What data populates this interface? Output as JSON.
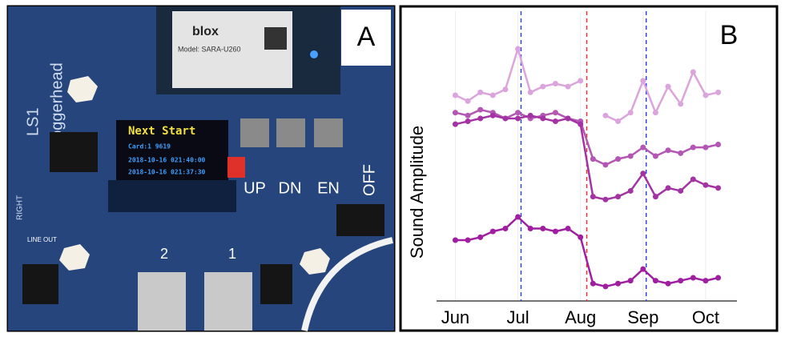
{
  "panel_a": {
    "label": "A",
    "brand": "blox",
    "model": "Model: SARA-U260",
    "board_name": "Loggerhead",
    "board_id": "LS1",
    "screen_title": "Next Start",
    "screen_card": "Card:1 9619",
    "screen_time1": "2018-10-16  021:40:00",
    "screen_time2": "2018-10-16  021:37:30",
    "button_up": "UP",
    "button_dn": "DN",
    "button_en": "EN",
    "switch_off": "OFF",
    "right_label": "RIGHT",
    "line_out": "LINE OUT",
    "port_2": "2",
    "port_1": "1"
  },
  "chart_data": {
    "type": "line",
    "label": "B",
    "y_label": "Sound Amplitude",
    "x": [
      0,
      0.2,
      0.4,
      0.6,
      0.8,
      1.0,
      1.2,
      1.4,
      1.6,
      1.8,
      2.0,
      2.2,
      2.4,
      2.6,
      2.8,
      3.0,
      3.2,
      3.4,
      3.6,
      3.8,
      4.0,
      4.2
    ],
    "xlim": [
      -0.3,
      4.5
    ],
    "xticks": [
      {
        "value": 0,
        "label": "Jun"
      },
      {
        "value": 1,
        "label": "Jul"
      },
      {
        "value": 2,
        "label": "Aug"
      },
      {
        "value": 3,
        "label": "Sep"
      },
      {
        "value": 4,
        "label": "Oct"
      }
    ],
    "ylim": [
      0,
      100
    ],
    "grid": true,
    "series": [
      {
        "color": "#dca4dc",
        "values": [
          71,
          69,
          72,
          71,
          73,
          87,
          72,
          74,
          75,
          74,
          76,
          null,
          64,
          62,
          65,
          76,
          65,
          74,
          68,
          79,
          71,
          72
        ]
      },
      {
        "color": "#b456b4",
        "values": [
          65,
          64,
          66,
          65,
          63,
          65,
          63,
          64,
          65,
          63,
          62,
          49,
          47,
          49,
          50,
          53,
          50,
          52,
          51,
          53,
          53,
          54
        ]
      },
      {
        "color": "#a333a3",
        "values": [
          61,
          62,
          63,
          64,
          63,
          63,
          64,
          63,
          62,
          63,
          61,
          36,
          35,
          36,
          38,
          44,
          36,
          39,
          38,
          42,
          40,
          39
        ]
      },
      {
        "color": "#a01fa0",
        "values": [
          21,
          21,
          22,
          24,
          25,
          29,
          25,
          25,
          24,
          25,
          22,
          6,
          5,
          6,
          7,
          11,
          7,
          6,
          7,
          8,
          7,
          8
        ]
      }
    ],
    "vlines": [
      {
        "x": 1.05,
        "color": "#3344dd"
      },
      {
        "x": 2.1,
        "color": "#ee3333"
      },
      {
        "x": 3.05,
        "color": "#3344dd"
      }
    ]
  }
}
